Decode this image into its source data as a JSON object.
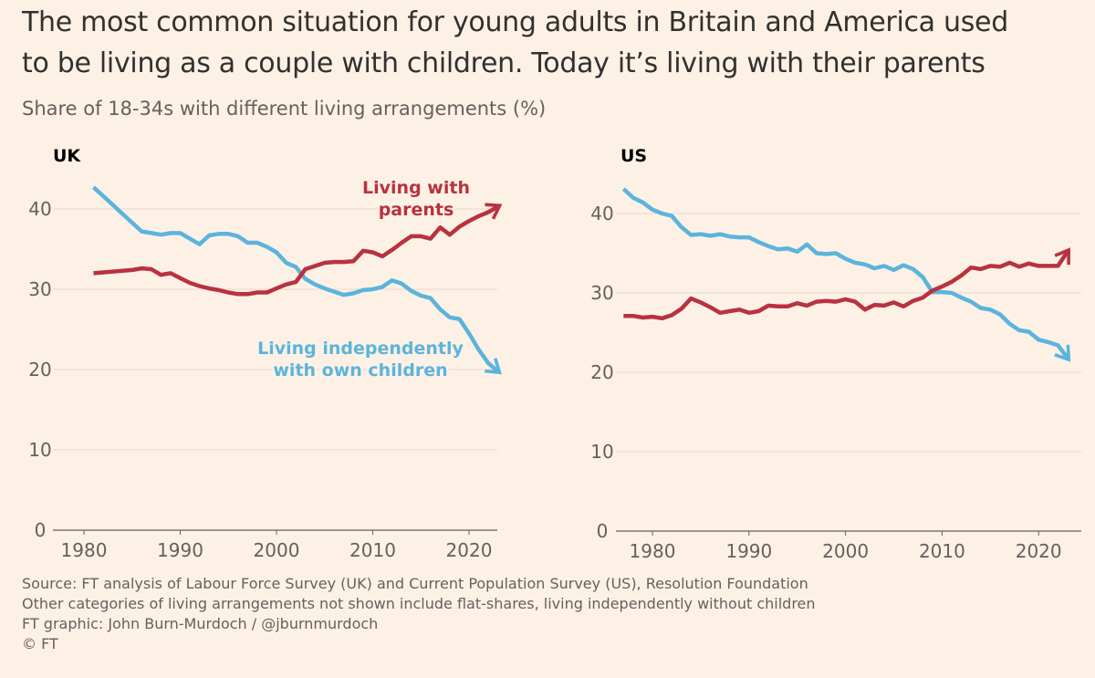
{
  "title_lines": [
    "The most common situation for young adults in Britain and America used",
    "to be living as a couple with children. Today it’s living with their parents"
  ],
  "subtitle": "Share of 18-34s with different living arrangements (%)",
  "colors": {
    "parents": "#b8323f",
    "independent": "#5cb4dc",
    "background": "#fdf1e6"
  },
  "chart_data": [
    {
      "type": "line",
      "panel_title": "UK",
      "ylim": [
        0,
        45
      ],
      "yticks": [
        0,
        10,
        20,
        30,
        40
      ],
      "xlim": [
        1977,
        2024
      ],
      "xticks": [
        1980,
        1990,
        2000,
        2010,
        2020
      ],
      "grid": true,
      "annotations": [
        {
          "series": "parents",
          "lines": [
            "Living with",
            "parents"
          ]
        },
        {
          "series": "independent",
          "lines": [
            "Living independently",
            "with own children"
          ]
        }
      ],
      "x": [
        1981,
        1982,
        1983,
        1984,
        1985,
        1986,
        1987,
        1988,
        1989,
        1990,
        1991,
        1992,
        1993,
        1994,
        1995,
        1996,
        1997,
        1998,
        1999,
        2000,
        2001,
        2002,
        2003,
        2004,
        2005,
        2006,
        2007,
        2008,
        2009,
        2010,
        2011,
        2012,
        2013,
        2014,
        2015,
        2016,
        2017,
        2018,
        2019,
        2020,
        2021,
        2022,
        2023
      ],
      "series": [
        {
          "name": "Living with parents",
          "key": "parents",
          "values": [
            32.0,
            32.1,
            32.2,
            32.3,
            32.4,
            32.6,
            32.5,
            31.8,
            32.0,
            31.4,
            30.8,
            30.4,
            30.1,
            29.9,
            29.6,
            29.4,
            29.4,
            29.6,
            29.6,
            30.1,
            30.6,
            30.9,
            32.5,
            32.9,
            33.3,
            33.4,
            33.4,
            33.5,
            34.8,
            34.6,
            34.1,
            34.9,
            35.8,
            36.6,
            36.6,
            36.3,
            37.7,
            36.8,
            37.8,
            38.5,
            39.1,
            39.6,
            40.3
          ]
        },
        {
          "name": "Living independently with own children",
          "key": "independent",
          "values": [
            42.7,
            41.6,
            40.5,
            39.4,
            38.3,
            37.2,
            37.0,
            36.8,
            37.0,
            37.0,
            36.3,
            35.6,
            36.7,
            36.9,
            36.9,
            36.6,
            35.8,
            35.8,
            35.3,
            34.6,
            33.3,
            32.8,
            31.3,
            30.6,
            30.1,
            29.7,
            29.3,
            29.5,
            29.9,
            30.0,
            30.3,
            31.1,
            30.7,
            29.8,
            29.2,
            28.9,
            27.5,
            26.5,
            26.3,
            24.5,
            22.5,
            20.8,
            19.8
          ]
        }
      ]
    },
    {
      "type": "line",
      "panel_title": "US",
      "ylim": [
        0,
        45
      ],
      "yticks": [
        0,
        10,
        20,
        30,
        40
      ],
      "xlim": [
        1976,
        2024
      ],
      "xticks": [
        1980,
        1990,
        2000,
        2010,
        2020
      ],
      "grid": true,
      "x": [
        1977,
        1978,
        1979,
        1980,
        1981,
        1982,
        1983,
        1984,
        1985,
        1986,
        1987,
        1988,
        1989,
        1990,
        1991,
        1992,
        1993,
        1994,
        1995,
        1996,
        1997,
        1998,
        1999,
        2000,
        2001,
        2002,
        2003,
        2004,
        2005,
        2006,
        2007,
        2008,
        2009,
        2010,
        2011,
        2012,
        2013,
        2014,
        2015,
        2016,
        2017,
        2018,
        2019,
        2020,
        2021,
        2022,
        2023
      ],
      "series": [
        {
          "name": "Living with parents",
          "key": "parents",
          "values": [
            27.1,
            27.1,
            26.9,
            27.0,
            26.8,
            27.2,
            28.0,
            29.3,
            28.8,
            28.2,
            27.5,
            27.7,
            27.9,
            27.5,
            27.7,
            28.4,
            28.3,
            28.3,
            28.7,
            28.4,
            28.9,
            29.0,
            28.9,
            29.2,
            28.9,
            27.9,
            28.5,
            28.4,
            28.8,
            28.3,
            29.0,
            29.4,
            30.3,
            30.8,
            31.4,
            32.2,
            33.2,
            33.0,
            33.4,
            33.3,
            33.8,
            33.3,
            33.7,
            33.4,
            33.4,
            33.4,
            35.2
          ]
        },
        {
          "name": "Living independently with own children",
          "key": "independent",
          "values": [
            43.1,
            42.0,
            41.4,
            40.5,
            40.0,
            39.7,
            38.3,
            37.3,
            37.4,
            37.2,
            37.4,
            37.1,
            37.0,
            37.0,
            36.4,
            35.9,
            35.5,
            35.6,
            35.2,
            36.1,
            35.0,
            34.9,
            35.0,
            34.3,
            33.8,
            33.6,
            33.1,
            33.4,
            32.9,
            33.5,
            33.0,
            32.0,
            30.1,
            30.1,
            30.0,
            29.4,
            28.9,
            28.1,
            27.9,
            27.3,
            26.1,
            25.3,
            25.1,
            24.1,
            23.8,
            23.4,
            21.8
          ]
        }
      ]
    }
  ],
  "footer": [
    "Source: FT analysis of Labour Force Survey (UK) and Current Population Survey (US), Resolution Foundation",
    "Other categories of living arrangements not shown include flat-shares, living independently without children",
    "FT graphic: John Burn-Murdoch / @jburnmurdoch",
    "© FT"
  ]
}
